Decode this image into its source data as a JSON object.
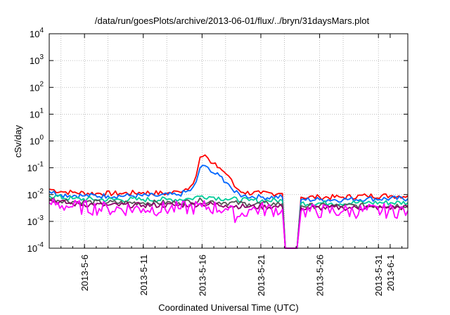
{
  "chart_data": {
    "type": "line",
    "title": "/data/run/goesPlots/archive/2013-06-01/flux/../bryn/31daysMars.plot",
    "xlabel": "Coordinated Universal Time (UTC)",
    "ylabel": "cSv/day",
    "y_scale": "log",
    "ylim": [
      0.0001,
      10000
    ],
    "xlim": [
      "2013-05-03 00:00",
      "2013-06-02 12:00"
    ],
    "grid": true,
    "y_ticks": [
      {
        "base": "10",
        "exp": "-4",
        "value": 0.0001
      },
      {
        "base": "10",
        "exp": "-3",
        "value": 0.001
      },
      {
        "base": "10",
        "exp": "-2",
        "value": 0.01
      },
      {
        "base": "10",
        "exp": "-1",
        "value": 0.1
      },
      {
        "base": "10",
        "exp": "0",
        "value": 1
      },
      {
        "base": "10",
        "exp": "1",
        "value": 10
      },
      {
        "base": "10",
        "exp": "2",
        "value": 100
      },
      {
        "base": "10",
        "exp": "3",
        "value": 1000
      },
      {
        "base": "10",
        "exp": "4",
        "value": 10000
      }
    ],
    "x_ticks": [
      {
        "label": "2013-5-6",
        "date": "2013-05-06"
      },
      {
        "label": "2013-5-11",
        "date": "2013-05-11"
      },
      {
        "label": "2013-5-16",
        "date": "2013-05-16"
      },
      {
        "label": "2013-5-21",
        "date": "2013-05-21"
      },
      {
        "label": "2013-5-26",
        "date": "2013-05-26"
      },
      {
        "label": "2013-5-31",
        "date": "2013-05-31"
      },
      {
        "label": "2013-6-1",
        "date": "2013-06-01"
      }
    ],
    "x_grid_dates": [
      "2013-05-04",
      "2013-05-06",
      "2013-05-08",
      "2013-05-11",
      "2013-05-13",
      "2013-05-16",
      "2013-05-18",
      "2013-05-21",
      "2013-05-23",
      "2013-05-26",
      "2013-05-28",
      "2013-05-31"
    ],
    "series": [
      {
        "color": "#ff0000",
        "values": [
          [
            "2013-05-03 00:00",
            0.016
          ],
          [
            "2013-05-04 00:00",
            0.013
          ],
          [
            "2013-05-05 00:00",
            0.012
          ],
          [
            "2013-05-07 00:00",
            0.011
          ],
          [
            "2013-05-09 00:00",
            0.011
          ],
          [
            "2013-05-11 00:00",
            0.012
          ],
          [
            "2013-05-13 00:00",
            0.011
          ],
          [
            "2013-05-14 00:00",
            0.013
          ],
          [
            "2013-05-15 00:00",
            0.02
          ],
          [
            "2013-05-15 12:00",
            0.05
          ],
          [
            "2013-05-15 20:00",
            0.25
          ],
          [
            "2013-05-16 06:00",
            0.3
          ],
          [
            "2013-05-16 18:00",
            0.15
          ],
          [
            "2013-05-17 12:00",
            0.1
          ],
          [
            "2013-05-18 06:00",
            0.05
          ],
          [
            "2013-05-18 18:00",
            0.02
          ],
          [
            "2013-05-19 12:00",
            0.012
          ],
          [
            "2013-05-21 00:00",
            0.011
          ],
          [
            "2013-05-22 12:00",
            0.011
          ],
          [
            "2013-05-22 20:00",
            0.011
          ],
          [
            "2013-05-23 02:00",
            0.0001
          ],
          [
            "2013-05-24 02:00",
            0.0001
          ],
          [
            "2013-05-24 10:00",
            0.008
          ],
          [
            "2013-05-26 00:00",
            0.008
          ],
          [
            "2013-05-28 00:00",
            0.008
          ],
          [
            "2013-05-30 00:00",
            0.009
          ],
          [
            "2013-06-01 00:00",
            0.009
          ],
          [
            "2013-06-02 12:00",
            0.009
          ]
        ]
      },
      {
        "color": "#0066ff",
        "values": [
          [
            "2013-05-03 00:00",
            0.013
          ],
          [
            "2013-05-04 00:00",
            0.01
          ],
          [
            "2013-05-06 00:00",
            0.009
          ],
          [
            "2013-05-08 00:00",
            0.009
          ],
          [
            "2013-05-10 00:00",
            0.009
          ],
          [
            "2013-05-12 00:00",
            0.009
          ],
          [
            "2013-05-14 00:00",
            0.01
          ],
          [
            "2013-05-15 00:00",
            0.014
          ],
          [
            "2013-05-15 12:00",
            0.03
          ],
          [
            "2013-05-15 20:00",
            0.1
          ],
          [
            "2013-05-16 06:00",
            0.12
          ],
          [
            "2013-05-16 18:00",
            0.07
          ],
          [
            "2013-05-17 12:00",
            0.05
          ],
          [
            "2013-05-18 06:00",
            0.025
          ],
          [
            "2013-05-18 18:00",
            0.012
          ],
          [
            "2013-05-19 12:00",
            0.009
          ],
          [
            "2013-05-21 00:00",
            0.008
          ],
          [
            "2013-05-22 20:00",
            0.008
          ],
          [
            "2013-05-23 02:00",
            0.0001
          ],
          [
            "2013-05-24 02:00",
            0.0001
          ],
          [
            "2013-05-24 10:00",
            0.0065
          ],
          [
            "2013-05-26 00:00",
            0.0065
          ],
          [
            "2013-05-28 00:00",
            0.0065
          ],
          [
            "2013-05-30 00:00",
            0.007
          ],
          [
            "2013-06-02 12:00",
            0.007
          ]
        ]
      },
      {
        "color": "#00cc99",
        "values": [
          [
            "2013-05-03 00:00",
            0.009
          ],
          [
            "2013-05-05 00:00",
            0.007
          ],
          [
            "2013-05-07 00:00",
            0.0065
          ],
          [
            "2013-05-09 00:00",
            0.0065
          ],
          [
            "2013-05-11 00:00",
            0.0065
          ],
          [
            "2013-05-13 00:00",
            0.0065
          ],
          [
            "2013-05-15 00:00",
            0.007
          ],
          [
            "2013-05-16 00:00",
            0.009
          ],
          [
            "2013-05-17 00:00",
            0.008
          ],
          [
            "2013-05-18 00:00",
            0.007
          ],
          [
            "2013-05-20 00:00",
            0.006
          ],
          [
            "2013-05-22 20:00",
            0.006
          ],
          [
            "2013-05-23 02:00",
            0.0001
          ],
          [
            "2013-05-24 02:00",
            0.0001
          ],
          [
            "2013-05-24 10:00",
            0.0048
          ],
          [
            "2013-05-27 00:00",
            0.0048
          ],
          [
            "2013-05-30 00:00",
            0.005
          ],
          [
            "2013-06-02 12:00",
            0.005
          ]
        ]
      },
      {
        "color": "#555555",
        "values": [
          [
            "2013-05-03 00:00",
            0.007
          ],
          [
            "2013-05-05 00:00",
            0.0055
          ],
          [
            "2013-05-08 00:00",
            0.005
          ],
          [
            "2013-05-11 00:00",
            0.005
          ],
          [
            "2013-05-14 00:00",
            0.005
          ],
          [
            "2013-05-16 00:00",
            0.006
          ],
          [
            "2013-05-18 00:00",
            0.005
          ],
          [
            "2013-05-20 00:00",
            0.0045
          ],
          [
            "2013-05-22 20:00",
            0.0045
          ],
          [
            "2013-05-23 02:00",
            0.0001
          ],
          [
            "2013-05-24 02:00",
            0.0001
          ],
          [
            "2013-05-24 10:00",
            0.0038
          ],
          [
            "2013-05-28 00:00",
            0.0038
          ],
          [
            "2013-06-02 12:00",
            0.004
          ]
        ]
      },
      {
        "color": "#880066",
        "values": [
          [
            "2013-05-03 00:00",
            0.006
          ],
          [
            "2013-05-05 00:00",
            0.0045
          ],
          [
            "2013-05-08 00:00",
            0.004
          ],
          [
            "2013-05-11 00:00",
            0.004
          ],
          [
            "2013-05-14 00:00",
            0.004
          ],
          [
            "2013-05-16 00:00",
            0.0045
          ],
          [
            "2013-05-18 00:00",
            0.004
          ],
          [
            "2013-05-20 00:00",
            0.0035
          ],
          [
            "2013-05-22 20:00",
            0.0035
          ],
          [
            "2013-05-23 02:00",
            0.0001
          ],
          [
            "2013-05-24 02:00",
            0.0001
          ],
          [
            "2013-05-24 10:00",
            0.0032
          ],
          [
            "2013-05-28 00:00",
            0.0032
          ],
          [
            "2013-06-02 12:00",
            0.0033
          ]
        ]
      },
      {
        "color": "#ff00ff",
        "values": [
          [
            "2013-05-03 00:00",
            0.005
          ],
          [
            "2013-05-05 00:00",
            0.0035
          ],
          [
            "2013-05-08 00:00",
            0.003
          ],
          [
            "2013-05-11 00:00",
            0.003
          ],
          [
            "2013-05-14 00:00",
            0.003
          ],
          [
            "2013-05-16 00:00",
            0.0035
          ],
          [
            "2013-05-18 00:00",
            0.003
          ],
          [
            "2013-05-19 00:00",
            0.0015
          ],
          [
            "2013-05-20 00:00",
            0.0028
          ],
          [
            "2013-05-22 20:00",
            0.0028
          ],
          [
            "2013-05-23 02:00",
            0.0001
          ],
          [
            "2013-05-24 02:00",
            0.0001
          ],
          [
            "2013-05-24 10:00",
            0.0024
          ],
          [
            "2013-05-28 00:00",
            0.0024
          ],
          [
            "2013-06-02 12:00",
            0.0025
          ]
        ]
      }
    ]
  }
}
